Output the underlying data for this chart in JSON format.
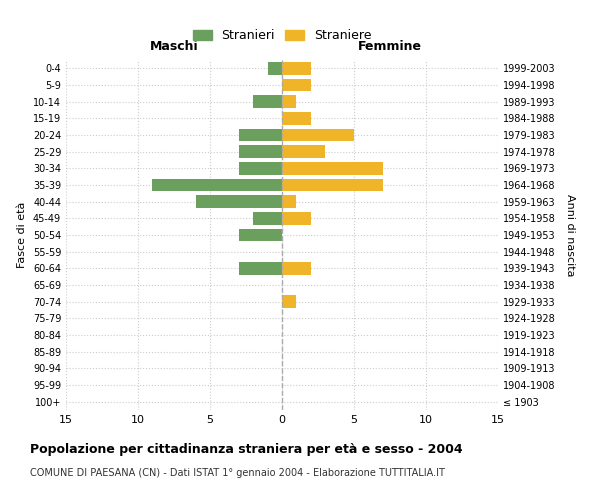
{
  "age_groups": [
    "100+",
    "95-99",
    "90-94",
    "85-89",
    "80-84",
    "75-79",
    "70-74",
    "65-69",
    "60-64",
    "55-59",
    "50-54",
    "45-49",
    "40-44",
    "35-39",
    "30-34",
    "25-29",
    "20-24",
    "15-19",
    "10-14",
    "5-9",
    "0-4"
  ],
  "birth_years": [
    "≤ 1903",
    "1904-1908",
    "1909-1913",
    "1914-1918",
    "1919-1923",
    "1924-1928",
    "1929-1933",
    "1934-1938",
    "1939-1943",
    "1944-1948",
    "1949-1953",
    "1954-1958",
    "1959-1963",
    "1964-1968",
    "1969-1973",
    "1974-1978",
    "1979-1983",
    "1984-1988",
    "1989-1993",
    "1994-1998",
    "1999-2003"
  ],
  "males": [
    0,
    0,
    0,
    0,
    0,
    0,
    0,
    0,
    3,
    0,
    3,
    2,
    6,
    9,
    3,
    3,
    3,
    0,
    2,
    0,
    1
  ],
  "females": [
    0,
    0,
    0,
    0,
    0,
    0,
    1,
    0,
    2,
    0,
    0,
    2,
    1,
    7,
    7,
    3,
    5,
    2,
    1,
    2,
    2
  ],
  "male_color": "#6a9f5e",
  "female_color": "#f0b429",
  "background_color": "#ffffff",
  "grid_color": "#cccccc",
  "title": "Popolazione per cittadinanza straniera per età e sesso - 2004",
  "subtitle": "COMUNE DI PAESANA (CN) - Dati ISTAT 1° gennaio 2004 - Elaborazione TUTTITALIA.IT",
  "xlabel_left": "Maschi",
  "xlabel_right": "Femmine",
  "ylabel_left": "Fasce di età",
  "ylabel_right": "Anni di nascita",
  "legend_male": "Stranieri",
  "legend_female": "Straniere",
  "xlim": 15,
  "xtick_positions": [
    -15,
    -10,
    -5,
    0,
    5,
    10,
    15
  ],
  "xtick_labels": [
    "15",
    "10",
    "5",
    "0",
    "5",
    "10",
    "15"
  ]
}
